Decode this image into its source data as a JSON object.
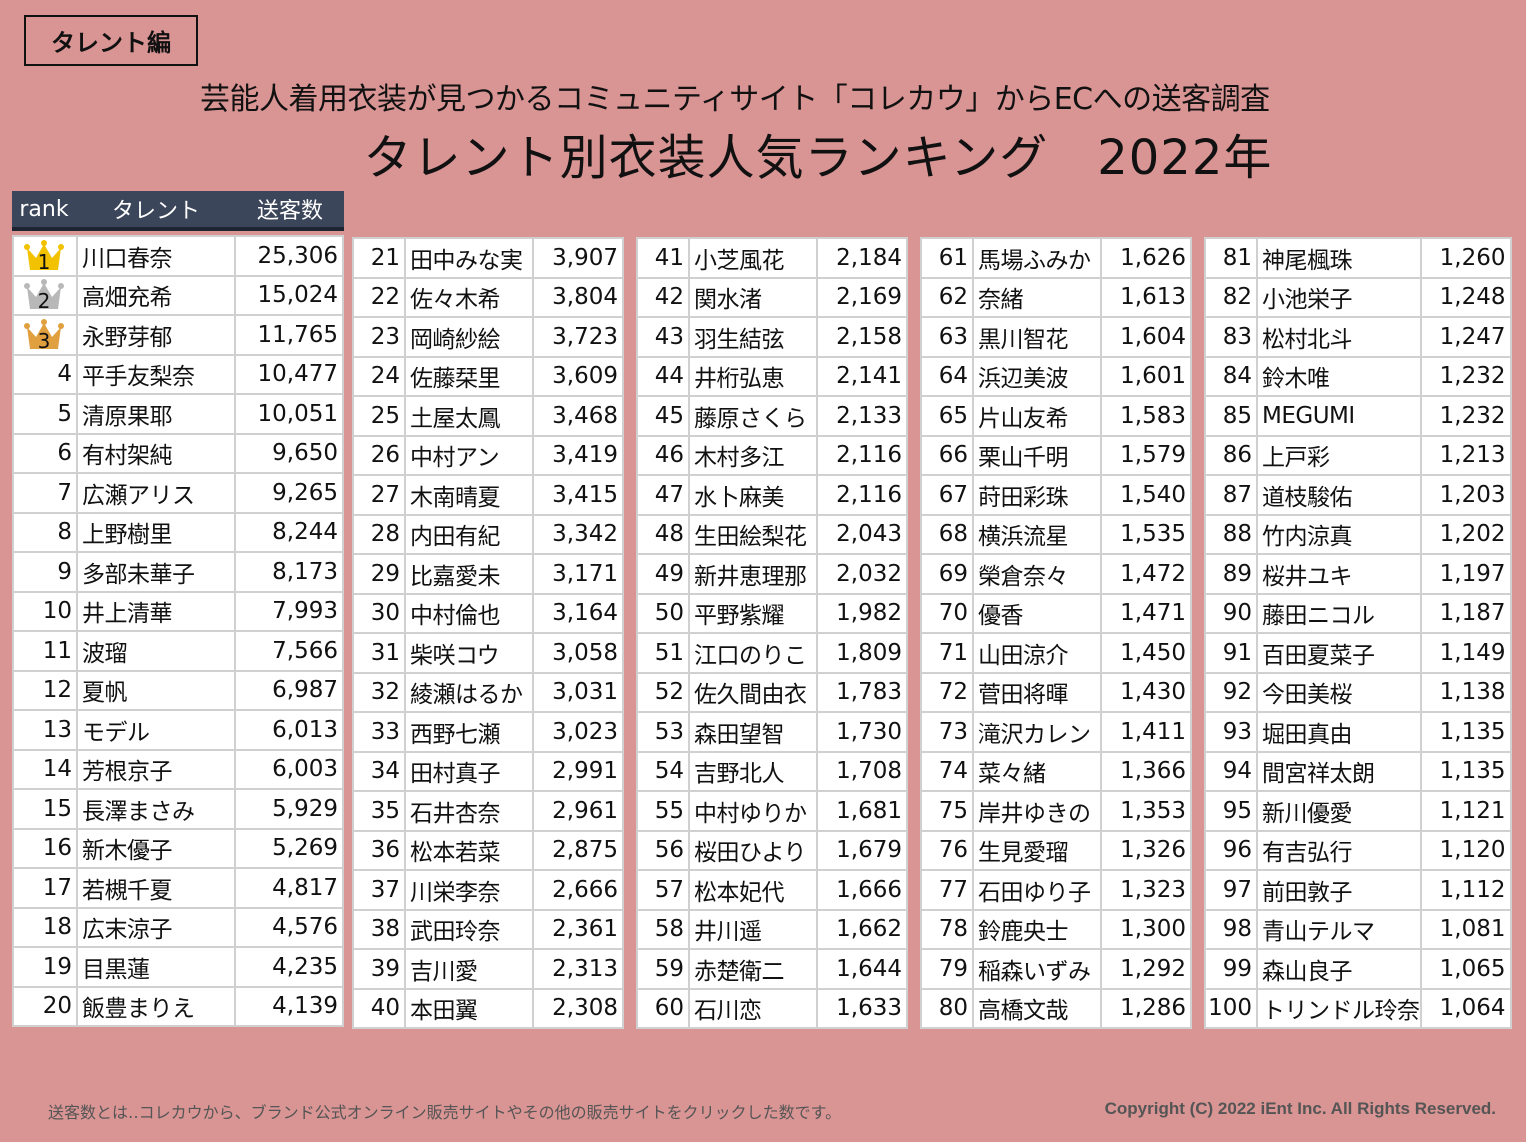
{
  "tag": "タレント編",
  "subtitle": "芸能人着用衣装が見つかるコミュニティサイト「コレカウ」からECへの送客調査",
  "title": "タレント別衣装人気ランキング　2022年",
  "header": {
    "rank": "rank",
    "talent": "タレント",
    "count": "送客数"
  },
  "crown_colors": {
    "gold": "#f2c200",
    "silver": "#b8b8b8",
    "bronze": "#e0a040"
  },
  "columns": [
    [
      {
        "rank": "1",
        "name": "川口春奈",
        "count": "25,306",
        "crown": "gold"
      },
      {
        "rank": "2",
        "name": "高畑充希",
        "count": "15,024",
        "crown": "silver"
      },
      {
        "rank": "3",
        "name": "永野芽郁",
        "count": "11,765",
        "crown": "bronze"
      },
      {
        "rank": "4",
        "name": "平手友梨奈",
        "count": "10,477"
      },
      {
        "rank": "5",
        "name": "清原果耶",
        "count": "10,051"
      },
      {
        "rank": "6",
        "name": "有村架純",
        "count": "9,650"
      },
      {
        "rank": "7",
        "name": "広瀬アリス",
        "count": "9,265"
      },
      {
        "rank": "8",
        "name": "上野樹里",
        "count": "8,244"
      },
      {
        "rank": "9",
        "name": "多部未華子",
        "count": "8,173"
      },
      {
        "rank": "10",
        "name": "井上清華",
        "count": "7,993"
      },
      {
        "rank": "11",
        "name": "波瑠",
        "count": "7,566"
      },
      {
        "rank": "12",
        "name": "夏帆",
        "count": "6,987"
      },
      {
        "rank": "13",
        "name": "モデル",
        "count": "6,013"
      },
      {
        "rank": "14",
        "name": "芳根京子",
        "count": "6,003"
      },
      {
        "rank": "15",
        "name": "長澤まさみ",
        "count": "5,929"
      },
      {
        "rank": "16",
        "name": "新木優子",
        "count": "5,269"
      },
      {
        "rank": "17",
        "name": "若槻千夏",
        "count": "4,817"
      },
      {
        "rank": "18",
        "name": "広末涼子",
        "count": "4,576"
      },
      {
        "rank": "19",
        "name": "目黒蓮",
        "count": "4,235"
      },
      {
        "rank": "20",
        "name": "飯豊まりえ",
        "count": "4,139"
      }
    ],
    [
      {
        "rank": "21",
        "name": "田中みな実",
        "count": "3,907"
      },
      {
        "rank": "22",
        "name": "佐々木希",
        "count": "3,804"
      },
      {
        "rank": "23",
        "name": "岡崎紗絵",
        "count": "3,723"
      },
      {
        "rank": "24",
        "name": "佐藤栞里",
        "count": "3,609"
      },
      {
        "rank": "25",
        "name": "土屋太鳳",
        "count": "3,468"
      },
      {
        "rank": "26",
        "name": "中村アン",
        "count": "3,419"
      },
      {
        "rank": "27",
        "name": "木南晴夏",
        "count": "3,415"
      },
      {
        "rank": "28",
        "name": "内田有紀",
        "count": "3,342"
      },
      {
        "rank": "29",
        "name": "比嘉愛未",
        "count": "3,171"
      },
      {
        "rank": "30",
        "name": "中村倫也",
        "count": "3,164"
      },
      {
        "rank": "31",
        "name": "柴咲コウ",
        "count": "3,058"
      },
      {
        "rank": "32",
        "name": "綾瀬はるか",
        "count": "3,031"
      },
      {
        "rank": "33",
        "name": "西野七瀬",
        "count": "3,023"
      },
      {
        "rank": "34",
        "name": "田村真子",
        "count": "2,991"
      },
      {
        "rank": "35",
        "name": "石井杏奈",
        "count": "2,961"
      },
      {
        "rank": "36",
        "name": "松本若菜",
        "count": "2,875"
      },
      {
        "rank": "37",
        "name": "川栄李奈",
        "count": "2,666"
      },
      {
        "rank": "38",
        "name": "武田玲奈",
        "count": "2,361"
      },
      {
        "rank": "39",
        "name": "吉川愛",
        "count": "2,313"
      },
      {
        "rank": "40",
        "name": "本田翼",
        "count": "2,308"
      }
    ],
    [
      {
        "rank": "41",
        "name": "小芝風花",
        "count": "2,184"
      },
      {
        "rank": "42",
        "name": "関水渚",
        "count": "2,169"
      },
      {
        "rank": "43",
        "name": "羽生結弦",
        "count": "2,158"
      },
      {
        "rank": "44",
        "name": "井桁弘恵",
        "count": "2,141"
      },
      {
        "rank": "45",
        "name": "藤原さくら",
        "count": "2,133"
      },
      {
        "rank": "46",
        "name": "木村多江",
        "count": "2,116"
      },
      {
        "rank": "47",
        "name": "水卜麻美",
        "count": "2,116"
      },
      {
        "rank": "48",
        "name": "生田絵梨花",
        "count": "2,043"
      },
      {
        "rank": "49",
        "name": "新井恵理那",
        "count": "2,032"
      },
      {
        "rank": "50",
        "name": "平野紫耀",
        "count": "1,982"
      },
      {
        "rank": "51",
        "name": "江口のりこ",
        "count": "1,809"
      },
      {
        "rank": "52",
        "name": "佐久間由衣",
        "count": "1,783"
      },
      {
        "rank": "53",
        "name": "森田望智",
        "count": "1,730"
      },
      {
        "rank": "54",
        "name": "吉野北人",
        "count": "1,708"
      },
      {
        "rank": "55",
        "name": "中村ゆりか",
        "count": "1,681"
      },
      {
        "rank": "56",
        "name": "桜田ひより",
        "count": "1,679"
      },
      {
        "rank": "57",
        "name": "松本妃代",
        "count": "1,666"
      },
      {
        "rank": "58",
        "name": "井川遥",
        "count": "1,662"
      },
      {
        "rank": "59",
        "name": "赤楚衛二",
        "count": "1,644"
      },
      {
        "rank": "60",
        "name": "石川恋",
        "count": "1,633"
      }
    ],
    [
      {
        "rank": "61",
        "name": "馬場ふみか",
        "count": "1,626"
      },
      {
        "rank": "62",
        "name": "奈緒",
        "count": "1,613"
      },
      {
        "rank": "63",
        "name": "黒川智花",
        "count": "1,604"
      },
      {
        "rank": "64",
        "name": "浜辺美波",
        "count": "1,601"
      },
      {
        "rank": "65",
        "name": "片山友希",
        "count": "1,583"
      },
      {
        "rank": "66",
        "name": "栗山千明",
        "count": "1,579"
      },
      {
        "rank": "67",
        "name": "莳田彩珠",
        "count": "1,540"
      },
      {
        "rank": "68",
        "name": "横浜流星",
        "count": "1,535"
      },
      {
        "rank": "69",
        "name": "榮倉奈々",
        "count": "1,472"
      },
      {
        "rank": "70",
        "name": "優香",
        "count": "1,471"
      },
      {
        "rank": "71",
        "name": "山田涼介",
        "count": "1,450"
      },
      {
        "rank": "72",
        "name": "菅田将暉",
        "count": "1,430"
      },
      {
        "rank": "73",
        "name": "滝沢カレン",
        "count": "1,411"
      },
      {
        "rank": "74",
        "name": "菜々緒",
        "count": "1,366"
      },
      {
        "rank": "75",
        "name": "岸井ゆきの",
        "count": "1,353"
      },
      {
        "rank": "76",
        "name": "生見愛瑠",
        "count": "1,326"
      },
      {
        "rank": "77",
        "name": "石田ゆり子",
        "count": "1,323"
      },
      {
        "rank": "78",
        "name": "鈴鹿央士",
        "count": "1,300"
      },
      {
        "rank": "79",
        "name": "稲森いずみ",
        "count": "1,292"
      },
      {
        "rank": "80",
        "name": "高橋文哉",
        "count": "1,286"
      }
    ],
    [
      {
        "rank": "81",
        "name": "神尾楓珠",
        "count": "1,260"
      },
      {
        "rank": "82",
        "name": "小池栄子",
        "count": "1,248"
      },
      {
        "rank": "83",
        "name": "松村北斗",
        "count": "1,247"
      },
      {
        "rank": "84",
        "name": "鈴木唯",
        "count": "1,232"
      },
      {
        "rank": "85",
        "name": "MEGUMI",
        "count": "1,232"
      },
      {
        "rank": "86",
        "name": "上戸彩",
        "count": "1,213"
      },
      {
        "rank": "87",
        "name": "道枝駿佑",
        "count": "1,203"
      },
      {
        "rank": "88",
        "name": "竹内涼真",
        "count": "1,202"
      },
      {
        "rank": "89",
        "name": "桜井ユキ",
        "count": "1,197"
      },
      {
        "rank": "90",
        "name": "藤田ニコル",
        "count": "1,187"
      },
      {
        "rank": "91",
        "name": "百田夏菜子",
        "count": "1,149"
      },
      {
        "rank": "92",
        "name": "今田美桜",
        "count": "1,138"
      },
      {
        "rank": "93",
        "name": "堀田真由",
        "count": "1,135"
      },
      {
        "rank": "94",
        "name": "間宮祥太朗",
        "count": "1,135"
      },
      {
        "rank": "95",
        "name": "新川優愛",
        "count": "1,121"
      },
      {
        "rank": "96",
        "name": "有吉弘行",
        "count": "1,120"
      },
      {
        "rank": "97",
        "name": "前田敦子",
        "count": "1,112"
      },
      {
        "rank": "98",
        "name": "青山テルマ",
        "count": "1,081"
      },
      {
        "rank": "99",
        "name": "森山良子",
        "count": "1,065"
      },
      {
        "rank": "100",
        "name": "トリンドル玲奈",
        "count": "1,064"
      }
    ]
  ],
  "footer_note": "送客数とは‥コレカウから、ブランド公式オンライン販売サイトやその他の販売サイトをクリックした数です。",
  "copyright": "Copyright (C) 2022 iEnt Inc. All Rights Reserved."
}
